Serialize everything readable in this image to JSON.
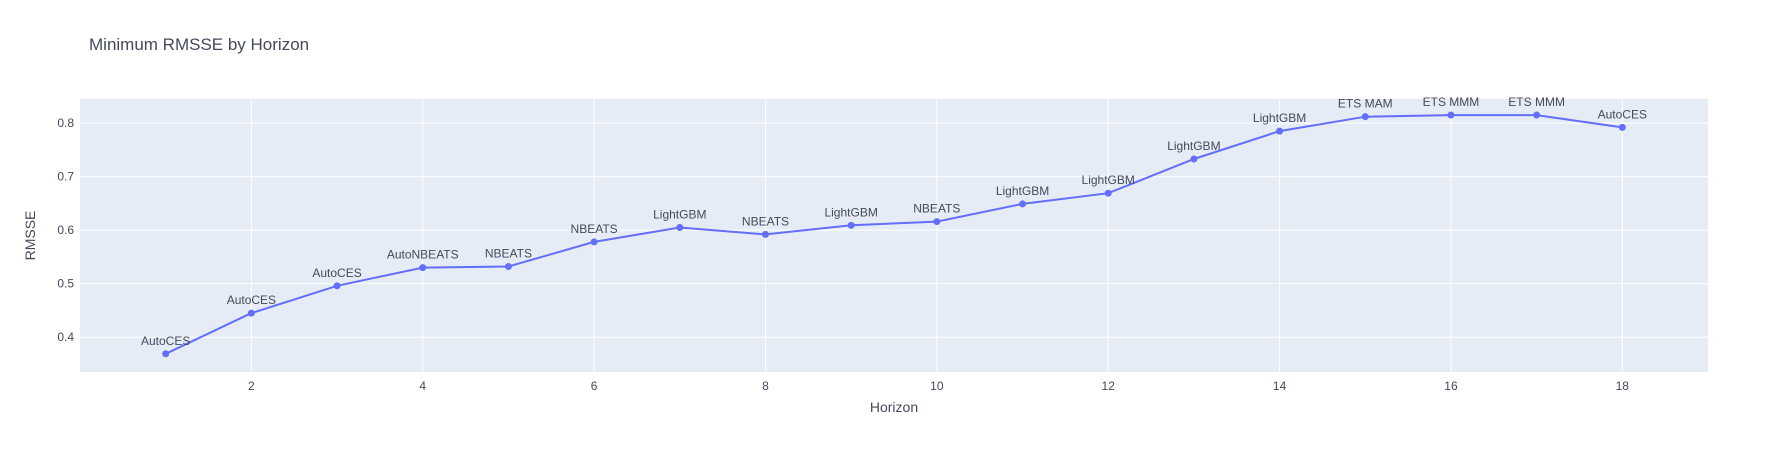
{
  "chart_data": {
    "type": "line",
    "title": "Minimum RMSSE by Horizon",
    "xlabel": "Horizon",
    "ylabel": "RMSSE",
    "xlim": [
      0.0,
      19.0
    ],
    "ylim": [
      0.335,
      0.845
    ],
    "x_ticks": [
      2,
      4,
      6,
      8,
      10,
      12,
      14,
      16,
      18
    ],
    "y_ticks": [
      0.4,
      0.5,
      0.6,
      0.7,
      0.8
    ],
    "grid": true,
    "legend": "none",
    "colors": {
      "line": "#636efa",
      "plot_bg": "#e5ecf6",
      "grid": "#ffffff",
      "text": "#444a5a"
    },
    "series": [
      {
        "x": [
          1,
          2,
          3,
          4,
          5,
          6,
          7,
          8,
          9,
          10,
          11,
          12,
          13,
          14,
          15,
          16,
          17,
          18
        ],
        "y": [
          0.369,
          0.445,
          0.496,
          0.53,
          0.532,
          0.578,
          0.605,
          0.592,
          0.609,
          0.616,
          0.649,
          0.669,
          0.733,
          0.785,
          0.812,
          0.815,
          0.815,
          0.792
        ],
        "labels": [
          "AutoCES",
          "AutoCES",
          "AutoCES",
          "AutoNBEATS",
          "NBEATS",
          "NBEATS",
          "LightGBM",
          "NBEATS",
          "LightGBM",
          "NBEATS",
          "LightGBM",
          "LightGBM",
          "LightGBM",
          "LightGBM",
          "ETS MAM",
          "ETS MMM",
          "ETS MMM",
          "AutoCES"
        ]
      }
    ]
  }
}
